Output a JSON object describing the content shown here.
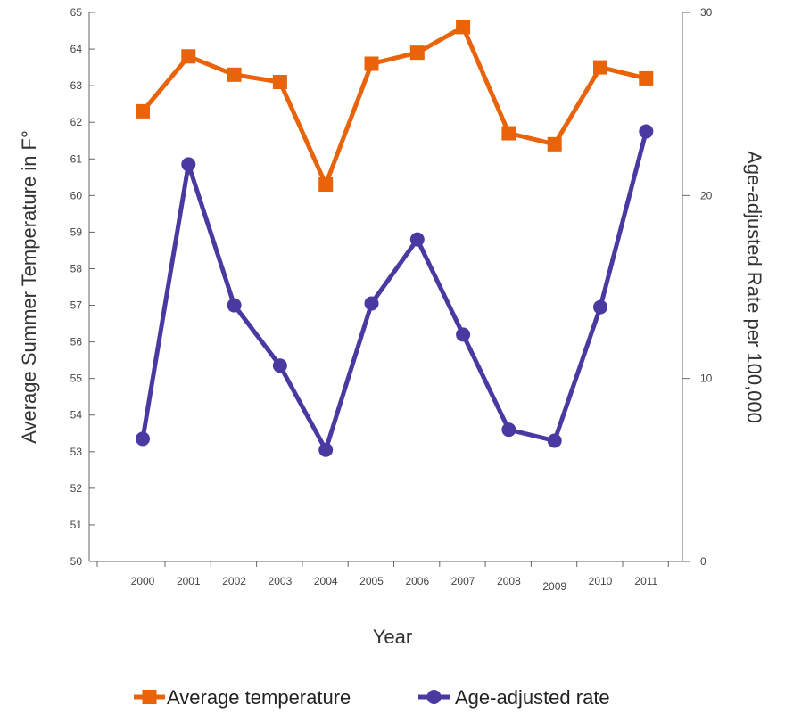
{
  "chart_data": {
    "type": "line",
    "xlabel": "Year",
    "ylabel_left": "Average Summer Temperature in F°",
    "ylabel_right": "Age-adjusted Rate per 100,000",
    "categories": [
      "2000",
      "2001",
      "2002",
      "2003",
      "2004",
      "2005",
      "2006",
      "2007",
      "2008",
      "2009",
      "2010",
      "2011"
    ],
    "ylim_left": [
      50,
      65
    ],
    "yticks_left": [
      "50",
      "51",
      "52",
      "53",
      "54",
      "55",
      "56",
      "57",
      "58",
      "59",
      "60",
      "61",
      "62",
      "63",
      "64",
      "65"
    ],
    "ylim_right": [
      0,
      30
    ],
    "yticks_right": [
      "0",
      "10",
      "20",
      "30"
    ],
    "grid": false,
    "legend_position": "bottom",
    "series": [
      {
        "name": "Average temperature",
        "axis": "left",
        "marker": "square",
        "color": "#E8630A",
        "values": [
          62.3,
          63.8,
          63.3,
          63.1,
          60.3,
          63.6,
          63.9,
          64.6,
          61.7,
          61.4,
          63.5,
          63.2
        ]
      },
      {
        "name": "Age-adjusted rate",
        "axis": "right",
        "marker": "circle",
        "color": "#4B39A2",
        "values": [
          6.7,
          21.7,
          14.0,
          10.7,
          6.1,
          14.1,
          17.6,
          12.4,
          7.2,
          6.6,
          13.9,
          23.5
        ]
      }
    ]
  }
}
